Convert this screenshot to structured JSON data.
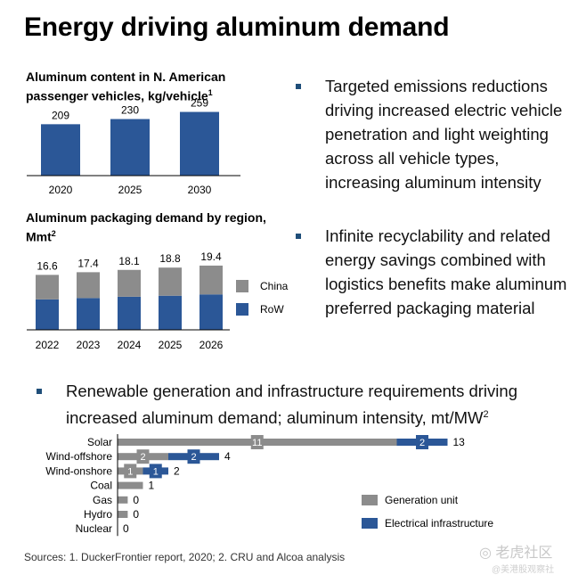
{
  "title": "Energy driving aluminum demand",
  "colors": {
    "navy": "#2b5797",
    "gray": "#8c8c8c",
    "bullet": "#1f4e79"
  },
  "chart_data": [
    {
      "type": "bar",
      "title": "Aluminum content in N. American passenger vehicles, kg/vehicle",
      "title_superscript": "1",
      "categories": [
        "2020",
        "2025",
        "2030"
      ],
      "values": [
        209,
        230,
        259
      ],
      "ylim": [
        0,
        290
      ],
      "color": "#2b5797"
    },
    {
      "type": "bar",
      "stacked": true,
      "title": "Aluminum packaging demand by region, Mmt",
      "title_superscript": "2",
      "categories": [
        "2022",
        "2023",
        "2024",
        "2025",
        "2026"
      ],
      "totals": [
        "16.6",
        "17.4",
        "18.1",
        "18.8",
        "19.4"
      ],
      "series": [
        {
          "name": "RoW",
          "values": [
            9.2,
            9.6,
            10.0,
            10.3,
            10.7
          ],
          "color": "#2b5797"
        },
        {
          "name": "China",
          "values": [
            7.4,
            7.8,
            8.1,
            8.5,
            8.7
          ],
          "color": "#8c8c8c"
        }
      ],
      "legend": "right",
      "ylim": [
        0,
        21
      ]
    },
    {
      "type": "bar",
      "orientation": "horizontal",
      "stacked": true,
      "categories": [
        "Solar",
        "Wind-offshore",
        "Wind-onshore",
        "Coal",
        "Gas",
        "Hydro",
        "Nuclear"
      ],
      "totals": [
        13,
        4,
        2,
        1,
        0,
        0,
        0
      ],
      "series": [
        {
          "name": "Generation unit",
          "values": [
            11,
            2,
            1,
            1,
            0.4,
            0.4,
            0
          ],
          "labels": [
            "11",
            "2",
            "1",
            "",
            "",
            "",
            ""
          ],
          "color": "#8c8c8c"
        },
        {
          "name": "Electrical infrastructure",
          "values": [
            2,
            2,
            1,
            0,
            0,
            0,
            0
          ],
          "labels": [
            "2",
            "2",
            "1",
            "",
            "",
            "",
            ""
          ],
          "color": "#2b5797"
        }
      ],
      "legend": "right",
      "xlim": [
        0,
        13
      ]
    }
  ],
  "bullets": [
    "Targeted emissions reductions driving increased electric vehicle penetration and light weighting across all vehicle types, increasing aluminum intensity",
    "Infinite recyclability and related energy savings combined with logistics benefits make aluminum preferred packaging material"
  ],
  "bullet3": {
    "text": "Renewable generation and infrastructure requirements driving increased aluminum demand; aluminum intensity, mt/MW",
    "superscript": "2"
  },
  "sources": "Sources: 1. DuckerFrontier report, 2020;  2. CRU and Alcoa analysis",
  "watermark": {
    "main": "老虎社区",
    "sub": "@美港股观察社"
  }
}
